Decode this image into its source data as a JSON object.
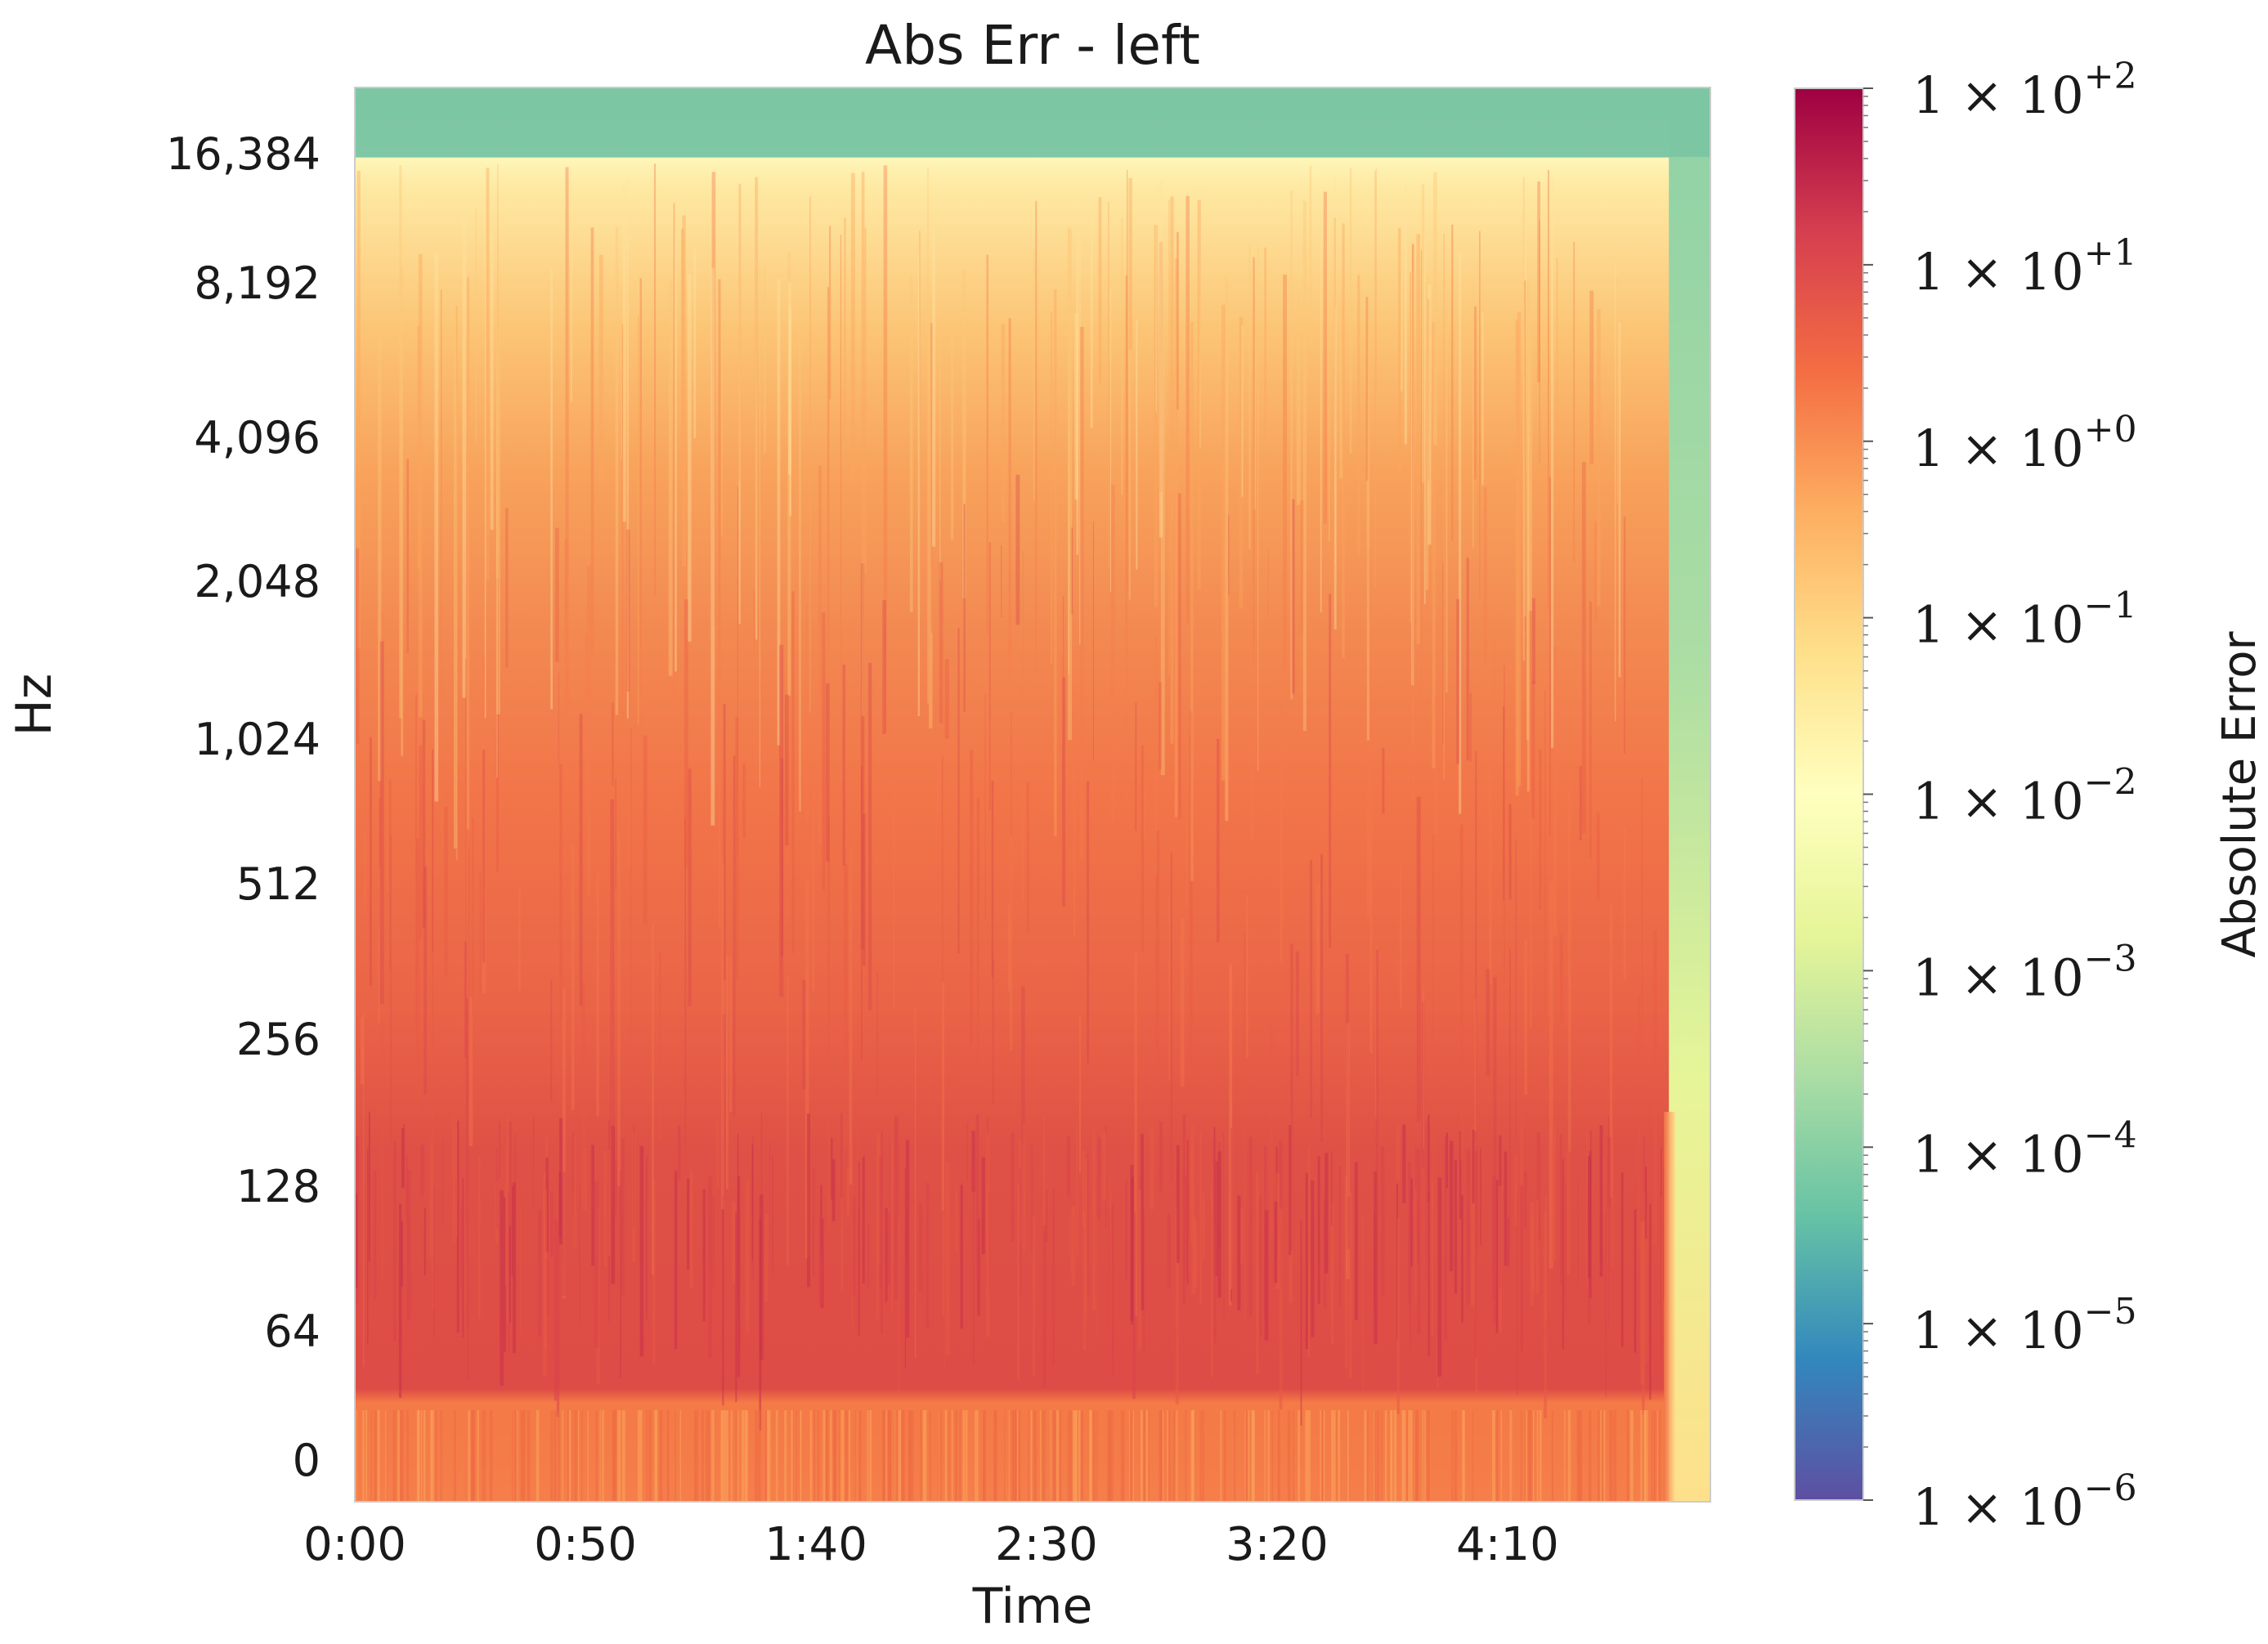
{
  "chart_data": {
    "type": "heatmap",
    "title": "Abs Err - left",
    "xlabel": "Time",
    "ylabel": "Hz",
    "x_ticks": [
      "0:00",
      "0:50",
      "1:40",
      "2:30",
      "3:20",
      "4:10"
    ],
    "x_tick_seconds": [
      0,
      50,
      100,
      150,
      200,
      250
    ],
    "x_range_seconds": [
      0,
      294
    ],
    "signal_end_seconds": 285,
    "y_scale": "log",
    "y_ticks": [
      "16,384",
      "8,192",
      "4,096",
      "2,048",
      "1,024",
      "512",
      "256",
      "128",
      "64",
      "0"
    ],
    "y_tick_values": [
      16384,
      8192,
      4096,
      2048,
      1024,
      512,
      256,
      128,
      64,
      0
    ],
    "y_range_hz": [
      0,
      22050
    ],
    "colorbar": {
      "label": "Absolute Error",
      "scale": "log",
      "colormap": "Spectral_r",
      "range": [
        1e-06,
        100
      ],
      "tick_base": "1 × 10",
      "tick_exponents": [
        "+2",
        "+1",
        "+0",
        "−1",
        "−2",
        "−3",
        "−4",
        "−5",
        "−6"
      ],
      "tick_values": [
        100,
        10,
        1,
        0.1,
        0.01,
        0.001,
        0.0001,
        1e-05,
        1e-06
      ]
    },
    "approx_log10_error_by_band": [
      {
        "hz": 0,
        "log10": 0.2
      },
      {
        "hz": 64,
        "log10": 0.9
      },
      {
        "hz": 128,
        "log10": 0.9
      },
      {
        "hz": 256,
        "log10": 0.7
      },
      {
        "hz": 512,
        "log10": 0.55
      },
      {
        "hz": 1024,
        "log10": 0.45
      },
      {
        "hz": 2048,
        "log10": 0.3
      },
      {
        "hz": 4096,
        "log10": 0.0
      },
      {
        "hz": 8192,
        "log10": -0.5
      },
      {
        "hz": 16384,
        "log10": -1.3
      },
      {
        "hz": 22050,
        "log10": -4.0
      }
    ],
    "grid": false
  }
}
